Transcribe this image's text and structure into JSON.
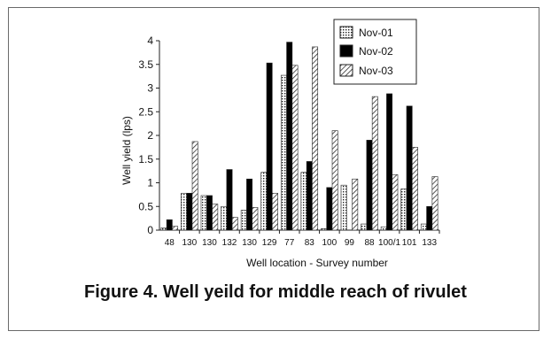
{
  "figure": {
    "caption": "Figure 4. Well yeild for middle reach of rivulet"
  },
  "chart_data": {
    "type": "bar",
    "xlabel": "Well location - Survey number",
    "ylabel": "Well yield (lps)",
    "ylim": [
      0,
      4
    ],
    "yticks": [
      "0",
      "0.5",
      "1",
      "1.5",
      "2",
      "2.5",
      "3",
      "3.5",
      "4"
    ],
    "grid": false,
    "legend_position": "top-right",
    "categories": [
      "48",
      "130",
      "130",
      "132",
      "130",
      "129",
      "77",
      "83",
      "100",
      "99",
      "88",
      "100/1",
      "101",
      "133"
    ],
    "series": [
      {
        "name": "Nov-01",
        "pattern": "dotted",
        "values": [
          0.05,
          0.78,
          0.73,
          0.5,
          0.42,
          1.22,
          3.27,
          1.22,
          0.03,
          0.95,
          0.13,
          0.07,
          0.87,
          0.13
        ]
      },
      {
        "name": "Nov-02",
        "pattern": "solid",
        "values": [
          0.22,
          0.78,
          0.73,
          1.28,
          1.08,
          3.53,
          3.97,
          1.45,
          0.9,
          0.0,
          1.9,
          2.88,
          2.62,
          0.5
        ]
      },
      {
        "name": "Nov-03",
        "pattern": "hatched",
        "values": [
          0.08,
          1.87,
          0.55,
          0.27,
          0.48,
          0.78,
          3.48,
          3.87,
          2.1,
          1.08,
          2.82,
          1.17,
          1.75,
          1.13
        ]
      }
    ]
  }
}
